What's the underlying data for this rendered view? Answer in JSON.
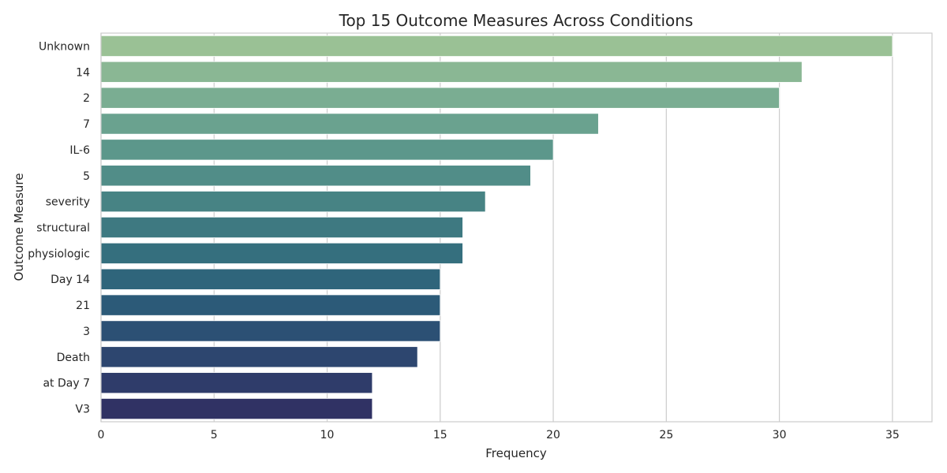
{
  "chart_data": {
    "type": "bar",
    "orientation": "horizontal",
    "title": "Top 15 Outcome Measures Across Conditions",
    "xlabel": "Frequency",
    "ylabel": "Outcome Measure",
    "categories": [
      "Unknown",
      "14",
      "2",
      "7",
      "IL-6",
      "5",
      "severity",
      "structural",
      "physiologic",
      "Day 14",
      "21",
      "3",
      "Death",
      "at Day 7",
      "V3"
    ],
    "values": [
      35,
      31,
      30,
      22,
      20,
      19,
      17,
      16,
      16,
      15,
      15,
      15,
      14,
      12,
      12
    ],
    "xlim": [
      0,
      36.75
    ],
    "xticks": [
      0,
      5,
      10,
      15,
      20,
      25,
      30,
      35
    ],
    "grid": true,
    "colors": [
      "#9ac195",
      "#8ab794",
      "#7aad92",
      "#6aa28f",
      "#5c978b",
      "#518d88",
      "#478384",
      "#3e7981",
      "#356f7e",
      "#2f657b",
      "#2c5a78",
      "#2c5074",
      "#2d466f",
      "#2f3c6a",
      "#303264"
    ]
  }
}
